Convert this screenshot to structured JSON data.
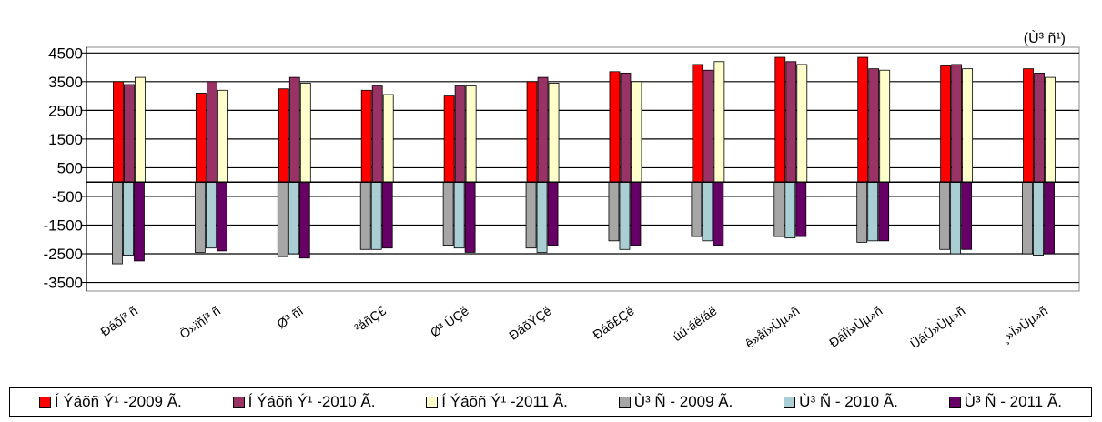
{
  "unit_label": "(Ù³ ñ¹)",
  "chart_data": {
    "type": "bar",
    "categories": [
      "Ðáõí³ ñ",
      "Ö»ïñí³ ñ",
      "Ø³ ñï",
      "²åñÇ£",
      "Ø³ ÛÇë",
      "ÐáõÝÇë",
      "Ðáõ£Çë",
      "úú·áëïáë",
      "ê»åï»Ùµ»ñ",
      "ÐáÏï»Ùµ»ñ",
      "ÜáÛ»Ùµ»ñ",
      "¸»Ï»Ùµ»ñ"
    ],
    "series": [
      {
        "name": "Í Ýáõñ Ý¹ -2009 Ã.",
        "color": "#FF0000",
        "values": [
          3500,
          3100,
          3250,
          3200,
          3000,
          3500,
          3850,
          4100,
          4350,
          4350,
          4050,
          3950
        ]
      },
      {
        "name": "Í Ýáõñ Ý¹ -2010 Ã.",
        "color": "#993366",
        "values": [
          3400,
          3500,
          3650,
          3350,
          3350,
          3650,
          3800,
          3900,
          4200,
          3950,
          4100,
          3800
        ]
      },
      {
        "name": "Í Ýáõñ Ý¹ -2011 Ã.",
        "color": "#FFFFCC",
        "values": [
          3650,
          3200,
          3450,
          3050,
          3350,
          3450,
          3500,
          4200,
          4100,
          3900,
          3950,
          3650
        ]
      },
      {
        "name": "Ù³ Ñ - 2009 Ã.",
        "color": "#A6A6A6",
        "values": [
          -2850,
          -2450,
          -2600,
          -2350,
          -2200,
          -2300,
          -2050,
          -1900,
          -1900,
          -2100,
          -2350,
          -2500
        ]
      },
      {
        "name": "Ù³ Ñ - 2010 Ã.",
        "color": "#A9CFD4",
        "values": [
          -2550,
          -2300,
          -2500,
          -2350,
          -2300,
          -2450,
          -2350,
          -2050,
          -1950,
          -2050,
          -2500,
          -2550
        ]
      },
      {
        "name": "Ù³ Ñ - 2011 Ã.",
        "color": "#660066",
        "values": [
          -2750,
          -2400,
          -2650,
          -2300,
          -2450,
          -2200,
          -2200,
          -2200,
          -1900,
          -2050,
          -2350,
          -2500
        ]
      }
    ],
    "yticks": [
      4500,
      3500,
      2500,
      1500,
      500,
      -500,
      -1500,
      -2500,
      -3500
    ],
    "ylim": [
      -3800,
      4700
    ],
    "grid": true,
    "legend": "bottom"
  }
}
